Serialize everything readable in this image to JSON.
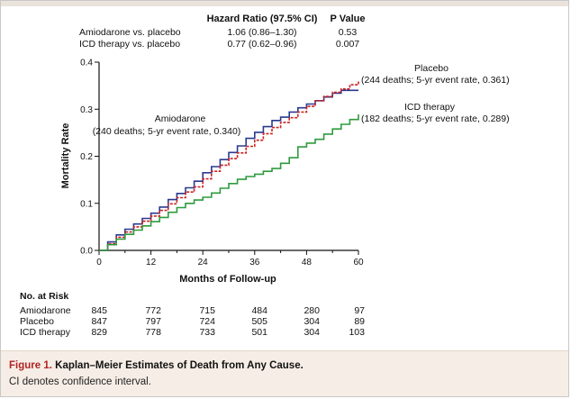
{
  "hr_table": {
    "col_hr": "Hazard Ratio (97.5% CI)",
    "col_p": "P Value",
    "rows": [
      {
        "label": "Amiodarone vs. placebo",
        "hr": "1.06 (0.86–1.30)",
        "p": "0.53"
      },
      {
        "label": "ICD therapy vs. placebo",
        "hr": "0.77 (0.62–0.96)",
        "p": "0.007"
      }
    ]
  },
  "chart_data": {
    "type": "line",
    "title": "",
    "xlabel": "Months of Follow-up",
    "ylabel": "Mortality Rate",
    "xlim": [
      0,
      60
    ],
    "ylim": [
      0,
      0.4
    ],
    "xticks": [
      "0",
      "12",
      "24",
      "36",
      "48",
      "60"
    ],
    "yticks": [
      "0.0",
      "0.1",
      "0.2",
      "0.3",
      "0.4"
    ],
    "series": [
      {
        "name": "Amiodarone",
        "color": "#2b3a8f",
        "dash": "solid",
        "annotation": "(240 deaths; 5-yr event rate, 0.340)",
        "x": [
          0,
          2,
          4,
          6,
          8,
          10,
          12,
          14,
          16,
          18,
          20,
          22,
          24,
          26,
          28,
          30,
          32,
          34,
          36,
          38,
          40,
          42,
          44,
          46,
          48,
          50,
          52,
          54,
          56,
          58,
          60
        ],
        "y": [
          0,
          0.018,
          0.033,
          0.045,
          0.056,
          0.068,
          0.079,
          0.092,
          0.108,
          0.121,
          0.133,
          0.147,
          0.165,
          0.178,
          0.193,
          0.208,
          0.222,
          0.238,
          0.251,
          0.263,
          0.276,
          0.283,
          0.294,
          0.303,
          0.311,
          0.318,
          0.326,
          0.334,
          0.34,
          0.34,
          0.34
        ]
      },
      {
        "name": "Placebo",
        "color": "#cc2222",
        "dash": "dashed",
        "annotation": "(244 deaths; 5-yr event rate, 0.361)",
        "x": [
          0,
          2,
          4,
          6,
          8,
          10,
          12,
          14,
          16,
          18,
          20,
          22,
          24,
          26,
          28,
          30,
          32,
          34,
          36,
          38,
          40,
          42,
          44,
          46,
          48,
          50,
          52,
          54,
          56,
          58,
          60
        ],
        "y": [
          0,
          0.014,
          0.028,
          0.039,
          0.05,
          0.062,
          0.073,
          0.085,
          0.099,
          0.112,
          0.124,
          0.135,
          0.152,
          0.168,
          0.181,
          0.195,
          0.207,
          0.221,
          0.234,
          0.248,
          0.261,
          0.272,
          0.282,
          0.294,
          0.306,
          0.318,
          0.327,
          0.336,
          0.343,
          0.352,
          0.361
        ]
      },
      {
        "name": "ICD therapy",
        "color": "#2e9b3e",
        "dash": "solid",
        "annotation": "(182 deaths; 5-yr event rate, 0.289)",
        "x": [
          0,
          2,
          4,
          6,
          8,
          10,
          12,
          14,
          16,
          18,
          20,
          22,
          24,
          26,
          28,
          30,
          32,
          34,
          36,
          38,
          40,
          42,
          44,
          46,
          48,
          50,
          52,
          54,
          56,
          58,
          60
        ],
        "y": [
          0,
          0.012,
          0.024,
          0.034,
          0.043,
          0.052,
          0.061,
          0.07,
          0.081,
          0.091,
          0.1,
          0.107,
          0.113,
          0.122,
          0.132,
          0.142,
          0.151,
          0.157,
          0.162,
          0.168,
          0.174,
          0.185,
          0.197,
          0.22,
          0.228,
          0.236,
          0.247,
          0.258,
          0.268,
          0.278,
          0.289
        ]
      }
    ]
  },
  "risk_table": {
    "title": "No. at Risk",
    "rows": [
      {
        "label": "Amiodarone",
        "values": [
          "845",
          "772",
          "715",
          "484",
          "280",
          "97"
        ]
      },
      {
        "label": "Placebo",
        "values": [
          "847",
          "797",
          "724",
          "505",
          "304",
          "89"
        ]
      },
      {
        "label": "ICD therapy",
        "values": [
          "829",
          "778",
          "733",
          "501",
          "304",
          "103"
        ]
      }
    ]
  },
  "caption": {
    "figure_label": "Figure 1.",
    "title": "Kaplan–Meier Estimates of Death from Any Cause.",
    "note": "CI denotes confidence interval."
  }
}
